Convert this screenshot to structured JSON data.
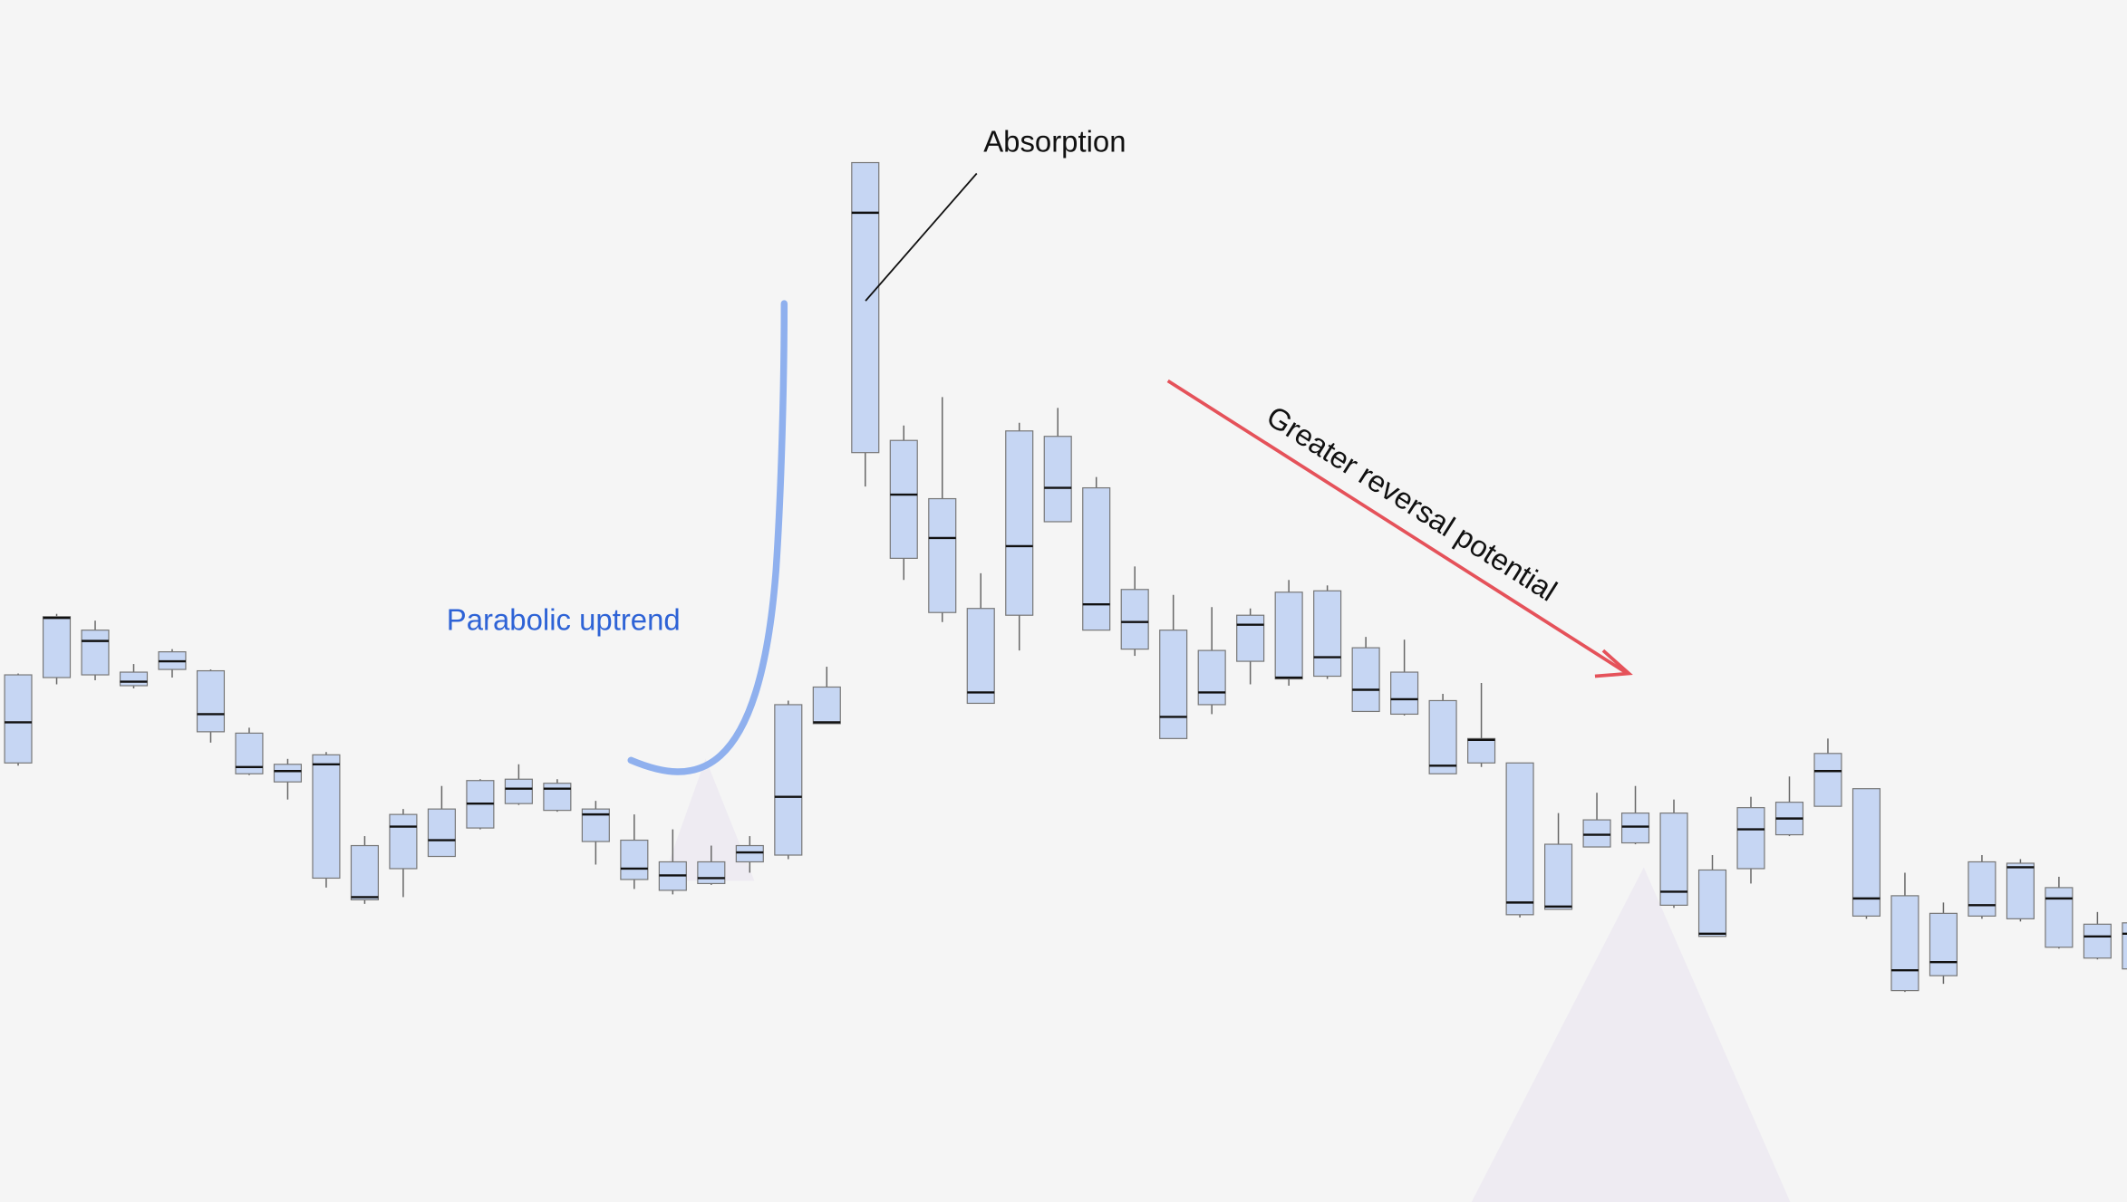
{
  "chart_data": {
    "type": "candlestick",
    "annotations": [
      "Absorption",
      "Parabolic uptrend",
      "Greater reversal potential"
    ],
    "ylim": [
      0,
      887
    ],
    "open": [
      324,
      387,
      389,
      381,
      393,
      347,
      316,
      310,
      239,
      223,
      246,
      255,
      276,
      294,
      289,
      266,
      238,
      230,
      235,
      251,
      256,
      353,
      553,
      475,
      435,
      368,
      433,
      502,
      422,
      408,
      342,
      367,
      399,
      386,
      388,
      362,
      360,
      316,
      324,
      212,
      216,
      262,
      265,
      219,
      196,
      246,
      271,
      292,
      211,
      156,
      167,
      211,
      209,
      188,
      180,
      172
    ],
    "high": [
      390,
      434,
      429,
      397,
      408,
      393,
      350,
      327,
      332,
      270,
      290,
      307,
      312,
      323,
      312,
      296,
      286,
      275,
      263,
      270,
      370,
      395,
      767,
      573,
      594,
      464,
      575,
      586,
      535,
      469,
      448,
      439,
      438,
      459,
      455,
      417,
      415,
      375,
      383,
      324,
      287,
      302,
      307,
      297,
      256,
      299,
      314,
      342,
      305,
      243,
      221,
      256,
      253,
      240,
      214,
      210
    ],
    "low": [
      322,
      382,
      385,
      379,
      387,
      339,
      315,
      297,
      232,
      220,
      225,
      255,
      275,
      293,
      288,
      249,
      231,
      227,
      234,
      243,
      253,
      353,
      528,
      459,
      428,
      368,
      407,
      502,
      422,
      403,
      342,
      360,
      382,
      381,
      386,
      362,
      359,
      316,
      321,
      210,
      216,
      262,
      264,
      217,
      196,
      235,
      270,
      292,
      209,
      155,
      161,
      209,
      207,
      187,
      179,
      172
    ],
    "close": [
      389,
      432,
      422,
      391,
      406,
      392,
      346,
      323,
      330,
      263,
      286,
      290,
      311,
      312,
      309,
      290,
      267,
      251,
      251,
      263,
      367,
      380,
      767,
      562,
      519,
      438,
      569,
      565,
      527,
      452,
      422,
      407,
      433,
      450,
      451,
      409,
      391,
      370,
      342,
      324,
      264,
      282,
      287,
      287,
      245,
      291,
      295,
      331,
      305,
      226,
      213,
      251,
      250,
      232,
      205,
      206
    ],
    "poc": [
      354,
      431,
      414,
      384,
      399,
      360,
      321,
      318,
      323,
      225,
      277,
      267,
      294,
      305,
      305,
      286,
      246,
      241,
      239,
      258,
      299,
      354,
      730,
      522,
      490,
      376,
      484,
      527,
      441,
      428,
      358,
      376,
      426,
      387,
      402,
      378,
      371,
      322,
      341,
      221,
      218,
      271,
      277,
      229,
      198,
      275,
      283,
      318,
      224,
      171,
      177,
      219,
      247,
      224,
      196,
      198
    ],
    "body_color": "#c6d6f3",
    "poc_color": "#111111"
  }
}
